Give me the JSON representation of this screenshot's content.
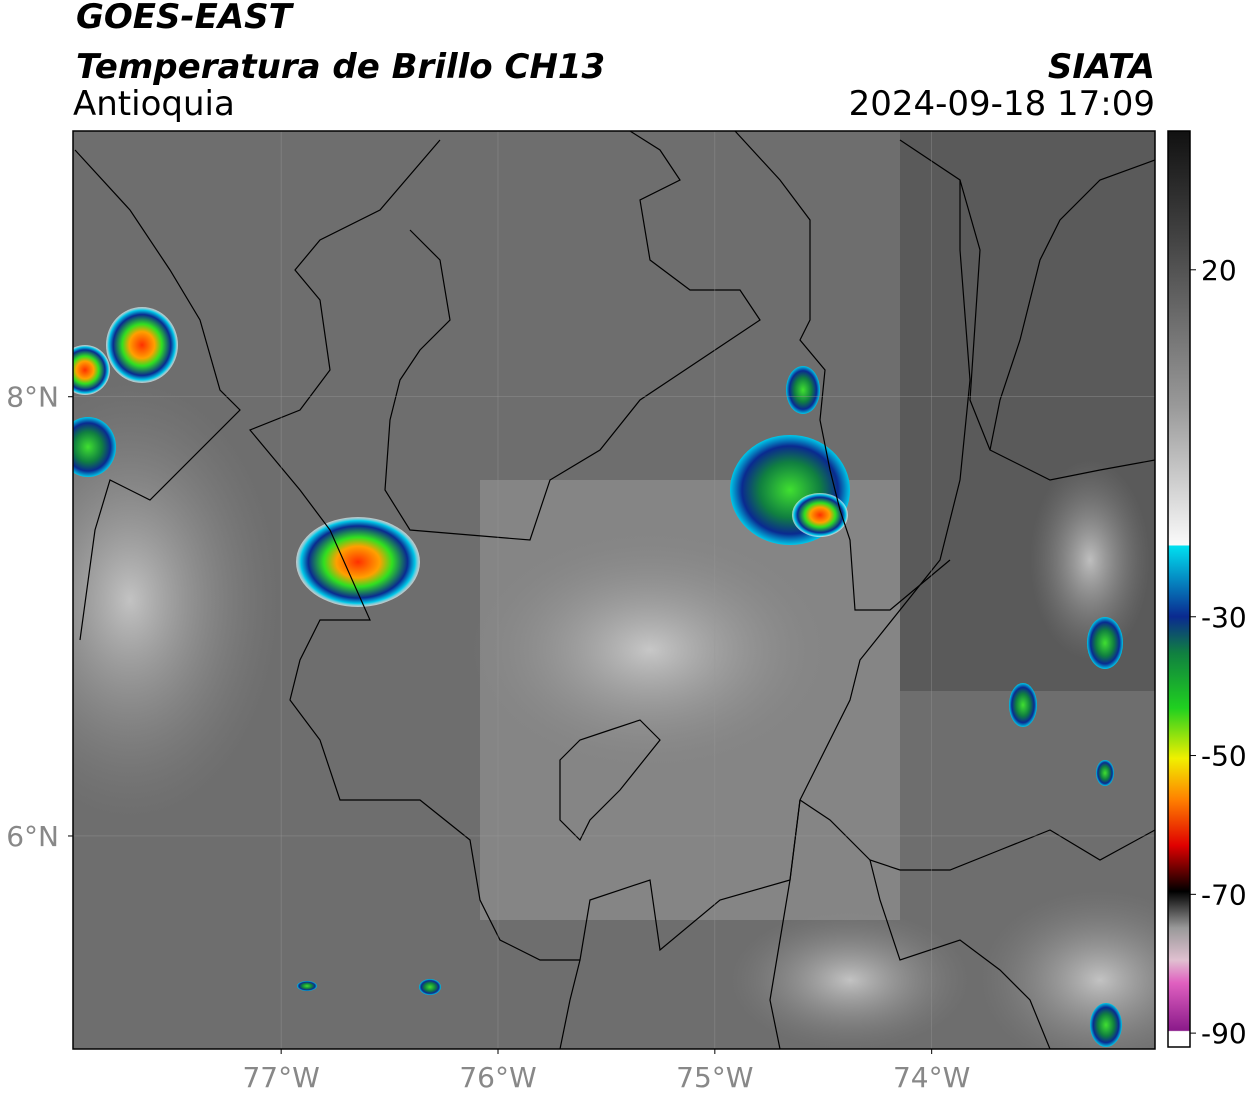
{
  "header": {
    "satellite": "GOES-EAST",
    "product": "Temperatura de Brillo CH13",
    "region": "Antioquia",
    "source": "SIATA",
    "datetime": "2024-09-18 17:09"
  },
  "map": {
    "xlim": [
      -77.96,
      -72.97
    ],
    "ylim": [
      5.03,
      9.21
    ],
    "xticks": [
      {
        "value": -77,
        "label": "77°W"
      },
      {
        "value": -76,
        "label": "76°W"
      },
      {
        "value": -75,
        "label": "75°W"
      },
      {
        "value": -74,
        "label": "74°W"
      }
    ],
    "yticks": [
      {
        "value": 8,
        "label": "8°N"
      },
      {
        "value": 6,
        "label": "6°N"
      }
    ],
    "grid": true
  },
  "colorbar": {
    "ylim": [
      -92,
      40
    ],
    "yticks": [
      20,
      -30,
      -50,
      -70,
      -90
    ]
  }
}
